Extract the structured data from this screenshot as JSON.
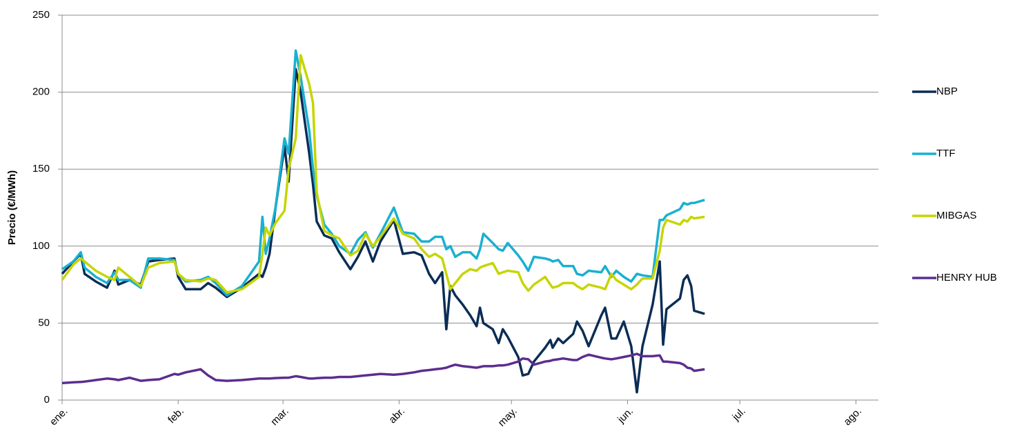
{
  "chart_data": {
    "type": "line",
    "y_label": "Precio (€/MWh)",
    "x": [
      0,
      3,
      5,
      6,
      9,
      12,
      14,
      15,
      18,
      21,
      23,
      26,
      30,
      31,
      33,
      37,
      39,
      41,
      44,
      48,
      52.6,
      53.5,
      54.4,
      55.4,
      57,
      59.4,
      60.5,
      62.4,
      63.7,
      66,
      67,
      68,
      70,
      72,
      74,
      77,
      79,
      81,
      83,
      85,
      88.6,
      91,
      94,
      96,
      98,
      99.6,
      101.5,
      102.6,
      103.7,
      105,
      107,
      109,
      110.7,
      111.6,
      112.5,
      115,
      116.6,
      117.7,
      119,
      121.8,
      123,
      124.5,
      126,
      129,
      130.4,
      131,
      132.5,
      133.8,
      136.5,
      137.5,
      139,
      140.6,
      144,
      145,
      146.7,
      148,
      150,
      152,
      153.5,
      155,
      157.7,
      159.6,
      160.5,
      161.4,
      165,
      166,
      167,
      168,
      168.8,
      171.6
    ],
    "series": [
      {
        "name": "NBP",
        "color": "#0b2d55",
        "values": [
          82,
          90,
          95,
          82,
          77,
          73,
          84,
          75,
          78,
          75,
          90,
          91,
          92,
          80,
          72,
          72,
          76,
          73,
          67,
          73,
          82,
          80,
          86,
          95,
          125,
          165,
          142,
          215,
          200,
          160,
          140,
          116,
          107,
          105,
          96,
          85,
          93,
          103,
          90,
          103,
          117,
          95,
          96,
          94,
          82,
          76,
          83,
          46,
          74,
          68,
          62,
          55,
          48,
          60,
          50,
          46,
          37,
          46,
          41,
          28,
          16,
          17,
          25,
          34,
          39,
          34,
          40,
          37,
          43,
          51,
          45,
          35,
          55,
          60,
          40,
          40,
          51,
          35,
          5,
          35,
          62,
          90,
          36,
          59,
          66,
          78,
          81,
          74,
          58,
          56
        ]
      },
      {
        "name": "TTF",
        "color": "#19b0d2",
        "values": [
          85,
          90,
          96,
          86,
          80,
          76,
          83,
          78,
          78,
          73,
          92,
          92,
          91,
          82,
          77,
          78,
          80,
          76,
          68,
          74,
          90,
          119,
          95,
          105,
          125,
          170,
          160,
          227,
          210,
          175,
          150,
          133,
          114,
          108,
          100,
          95,
          104,
          109,
          99,
          108,
          125,
          109,
          108,
          103,
          103,
          106,
          106,
          98,
          100,
          93,
          96,
          96,
          92,
          98,
          108,
          102,
          98,
          97,
          102,
          94,
          90,
          84,
          93,
          92,
          91,
          90,
          91,
          87,
          87,
          82,
          81,
          84,
          83,
          87,
          80,
          84,
          80,
          77,
          82,
          81,
          80,
          117,
          117,
          120,
          124,
          128,
          127,
          128,
          128,
          130
        ]
      },
      {
        "name": "MIBGAS",
        "color": "#c6d500",
        "values": [
          78,
          88,
          92,
          90,
          84,
          80,
          78,
          86,
          80,
          74,
          86,
          89,
          90,
          82,
          78,
          77,
          79,
          78,
          70,
          72,
          80,
          95,
          112,
          107,
          115,
          123,
          150,
          170,
          224,
          205,
          193,
          135,
          110,
          107,
          105,
          94,
          97,
          108,
          100,
          106,
          118,
          108,
          105,
          98,
          93,
          95,
          92,
          82,
          72,
          76,
          82,
          85,
          84,
          86,
          87,
          89,
          82,
          83,
          84,
          83,
          76,
          71,
          75,
          80,
          75,
          73,
          74,
          76,
          76,
          74,
          72,
          75,
          73,
          72,
          82,
          78,
          75,
          72,
          75,
          79,
          79,
          97,
          112,
          117,
          114,
          117,
          116,
          119,
          118,
          119
        ]
      },
      {
        "name": "HENRY HUB",
        "color": "#5c2d8e",
        "values": [
          11,
          11.5,
          11.8,
          12,
          13,
          14,
          13.5,
          13,
          14.5,
          12.5,
          13,
          13.5,
          17,
          16.5,
          18,
          20,
          16,
          13,
          12.5,
          13,
          14,
          14,
          14,
          14,
          14.3,
          14.5,
          14.5,
          15.5,
          15,
          14,
          14,
          14.2,
          14.5,
          14.5,
          15,
          15,
          15.5,
          16,
          16.5,
          17,
          16.5,
          17,
          18,
          19,
          19.5,
          20,
          20.5,
          21,
          22,
          23,
          22,
          21.5,
          21,
          21.5,
          22,
          22,
          22.5,
          22.5,
          23,
          25,
          27,
          26.5,
          23,
          25,
          25.5,
          26,
          26.5,
          27,
          26,
          26,
          28,
          29.5,
          27.5,
          27,
          26.5,
          27,
          28,
          29,
          30,
          28.5,
          28.5,
          29,
          25,
          25,
          24,
          23,
          21,
          20.5,
          19,
          20
        ]
      }
    ],
    "xlim": [
      0,
      218
    ],
    "xticks": [
      {
        "value": 0,
        "label": "ene."
      },
      {
        "value": 31,
        "label": "feb."
      },
      {
        "value": 59,
        "label": "mar."
      },
      {
        "value": 90,
        "label": "abr."
      },
      {
        "value": 120,
        "label": "may."
      },
      {
        "value": 151,
        "label": "jun."
      },
      {
        "value": 181,
        "label": "jul."
      },
      {
        "value": 212,
        "label": "ago."
      }
    ],
    "ylim": [
      0,
      250
    ],
    "yticks": [
      0,
      50,
      100,
      150,
      200,
      250
    ],
    "grid": true,
    "legend": "right"
  }
}
